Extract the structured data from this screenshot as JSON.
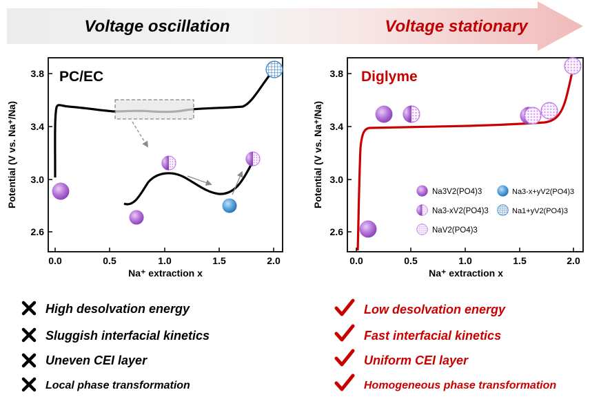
{
  "banner": {
    "left_text": "Voltage oscillation",
    "right_text": "Voltage stationary",
    "left_color": "#000000",
    "right_color": "#c00000"
  },
  "colors": {
    "accent_red": "#c80000",
    "na3_purple": "#a35bcc",
    "blue_phase": "#2f7fc1",
    "grid_blue": "#3d82c8",
    "dotted_pink": "#c58ae6"
  },
  "left_panel": {
    "label": "PC/EC",
    "y_axis_label": "Potential (V vs. Na⁺/Na)",
    "x_axis_label": "Na⁺ extraction x",
    "x_ticks": [
      "0.0",
      "0.5",
      "1.0",
      "1.5",
      "2.0"
    ],
    "y_ticks": [
      "2.6",
      "3.0",
      "3.4",
      "3.8"
    ]
  },
  "right_panel": {
    "label": "Diglyme",
    "y_axis_label": "Potential (V vs. Na⁺/Na)",
    "x_axis_label": "Na⁺ extraction x",
    "x_ticks": [
      "0.0",
      "0.5",
      "1.0",
      "1.5",
      "2.0"
    ],
    "y_ticks": [
      "2.6",
      "3.0",
      "3.4",
      "3.8"
    ]
  },
  "legend": [
    {
      "formula": "Na3V2(PO4)3",
      "icon": "solid-purple-sphere"
    },
    {
      "formula": "Na3-xV2(PO4)3",
      "icon": "half-solid-half-dotted-sphere"
    },
    {
      "formula": "NaV2(PO4)3",
      "icon": "dotted-sphere"
    },
    {
      "formula": "Na3-x+yV2(PO4)3",
      "icon": "blue-sphere"
    },
    {
      "formula": "Na1+yV2(PO4)3",
      "icon": "grid-sphere"
    }
  ],
  "left_list": [
    "High desolvation energy",
    "Sluggish interfacial kinetics",
    "Uneven CEI layer",
    "Local phase transformation"
  ],
  "right_list": [
    "Low desolvation energy",
    "Fast interfacial kinetics",
    "Uniform CEI layer",
    "Homogeneous phase transformation"
  ],
  "left_mark_icon": "cross-icon",
  "right_mark_icon": "check-icon"
}
